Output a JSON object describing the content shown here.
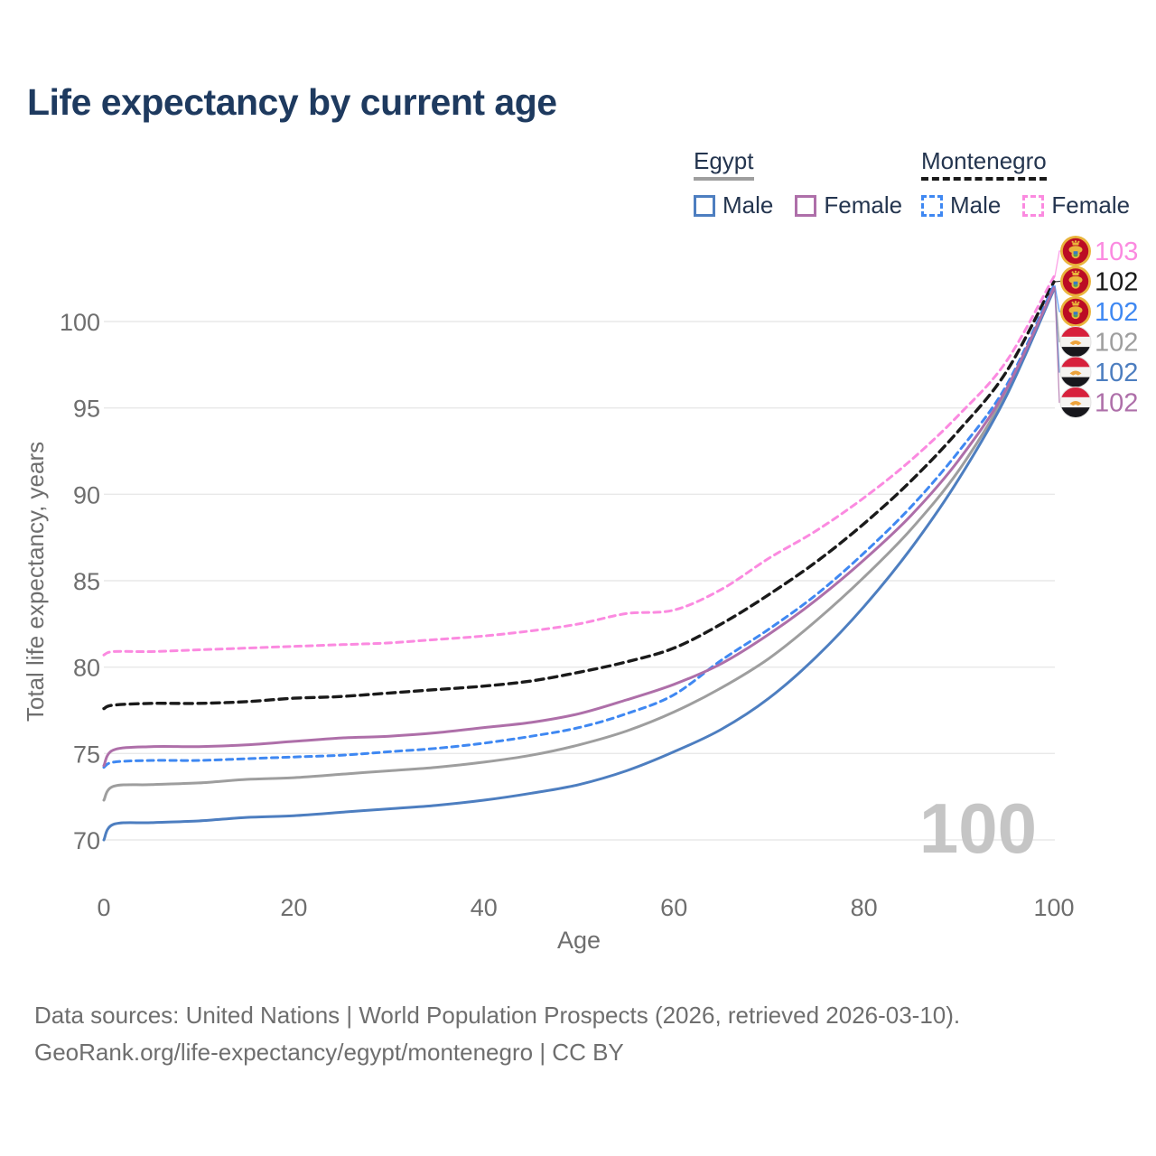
{
  "legend": {
    "groups": [
      {
        "id": "egypt",
        "label": "Egypt",
        "header_series": "egypt_total",
        "items": [
          {
            "label": "Male",
            "series": "egypt_male"
          },
          {
            "label": "Female",
            "series": "egypt_female"
          }
        ]
      },
      {
        "id": "montenegro",
        "label": "Montenegro",
        "header_series": "montenegro_total",
        "items": [
          {
            "label": "Male",
            "series": "montenegro_male"
          },
          {
            "label": "Female",
            "series": "montenegro_female"
          }
        ]
      }
    ]
  },
  "chart_data": {
    "type": "line",
    "title": "Life expectancy by current age",
    "xlabel": "Age",
    "ylabel": "Total life expectancy, years",
    "watermark": "100",
    "grid": true,
    "legend_position": "top-right",
    "xlim": [
      0,
      100
    ],
    "ylim": [
      68.5,
      103.5
    ],
    "xticks": [
      0,
      20,
      40,
      60,
      80,
      100
    ],
    "yticks": [
      70,
      75,
      80,
      85,
      90,
      95,
      100
    ],
    "x": [
      0,
      1,
      5,
      10,
      15,
      20,
      25,
      30,
      35,
      40,
      45,
      50,
      55,
      60,
      65,
      70,
      75,
      80,
      85,
      90,
      95,
      100
    ],
    "series": [
      {
        "id": "montenegro_female",
        "name": "Montenegro Female",
        "country": "Montenegro",
        "sex": "Female",
        "style": "dashed",
        "color": "#fb8ae0",
        "flag": "montenegro",
        "end_label": "103",
        "label_row": 0,
        "values": [
          80.7,
          80.9,
          80.9,
          81.0,
          81.1,
          81.2,
          81.3,
          81.4,
          81.6,
          81.8,
          82.1,
          82.5,
          83.1,
          83.3,
          84.5,
          86.3,
          87.9,
          89.8,
          92.0,
          94.6,
          97.7,
          102.6
        ]
      },
      {
        "id": "montenegro_total",
        "name": "Montenegro",
        "country": "Montenegro",
        "sex": "Both",
        "style": "dashed",
        "color": "#1a1a1a",
        "flag": "montenegro",
        "end_label": "102",
        "label_row": 1,
        "values": [
          77.6,
          77.8,
          77.9,
          77.9,
          78.0,
          78.2,
          78.3,
          78.5,
          78.7,
          78.9,
          79.2,
          79.7,
          80.3,
          81.1,
          82.5,
          84.2,
          86.1,
          88.3,
          90.8,
          93.7,
          97.1,
          102.3
        ]
      },
      {
        "id": "montenegro_male",
        "name": "Montenegro Male",
        "country": "Montenegro",
        "sex": "Male",
        "style": "dashed",
        "color": "#3f88f2",
        "flag": "montenegro",
        "end_label": "102",
        "label_row": 2,
        "values": [
          74.2,
          74.5,
          74.6,
          74.6,
          74.7,
          74.8,
          74.9,
          75.1,
          75.3,
          75.6,
          76.0,
          76.5,
          77.3,
          78.4,
          80.4,
          82.2,
          84.2,
          86.6,
          89.3,
          92.5,
          96.3,
          102.1
        ]
      },
      {
        "id": "egypt_total",
        "name": "Egypt",
        "country": "Egypt",
        "sex": "Both",
        "style": "solid",
        "color": "#9e9e9e",
        "flag": "egypt",
        "end_label": "102",
        "label_row": 3,
        "values": [
          72.3,
          73.1,
          73.2,
          73.3,
          73.5,
          73.6,
          73.8,
          74.0,
          74.2,
          74.5,
          74.9,
          75.5,
          76.3,
          77.4,
          78.8,
          80.5,
          82.7,
          85.2,
          88.0,
          91.4,
          95.9,
          101.9
        ]
      },
      {
        "id": "egypt_male",
        "name": "Egypt Male",
        "country": "Egypt",
        "sex": "Male",
        "style": "solid",
        "color": "#4d7ec0",
        "flag": "egypt",
        "end_label": "102",
        "label_row": 4,
        "values": [
          70.0,
          70.9,
          71.0,
          71.1,
          71.3,
          71.4,
          71.6,
          71.8,
          72.0,
          72.3,
          72.7,
          73.2,
          74.0,
          75.1,
          76.4,
          78.2,
          80.6,
          83.5,
          86.9,
          90.9,
          95.7,
          101.85
        ]
      },
      {
        "id": "egypt_female",
        "name": "Egypt Female",
        "country": "Egypt",
        "sex": "Female",
        "style": "solid",
        "color": "#ae6fa9",
        "flag": "egypt",
        "end_label": "102",
        "label_row": 5,
        "values": [
          74.3,
          75.2,
          75.4,
          75.4,
          75.5,
          75.7,
          75.9,
          76.0,
          76.2,
          76.5,
          76.8,
          77.3,
          78.1,
          79.0,
          80.2,
          81.9,
          83.9,
          86.2,
          88.8,
          92.0,
          96.1,
          101.95
        ]
      }
    ]
  },
  "footer": {
    "line1": "Data sources: United Nations | World Population Prospects (2026, retrieved 2026-03-10).",
    "line2": "GeoRank.org/life-expectancy/egypt/montenegro | CC BY"
  }
}
